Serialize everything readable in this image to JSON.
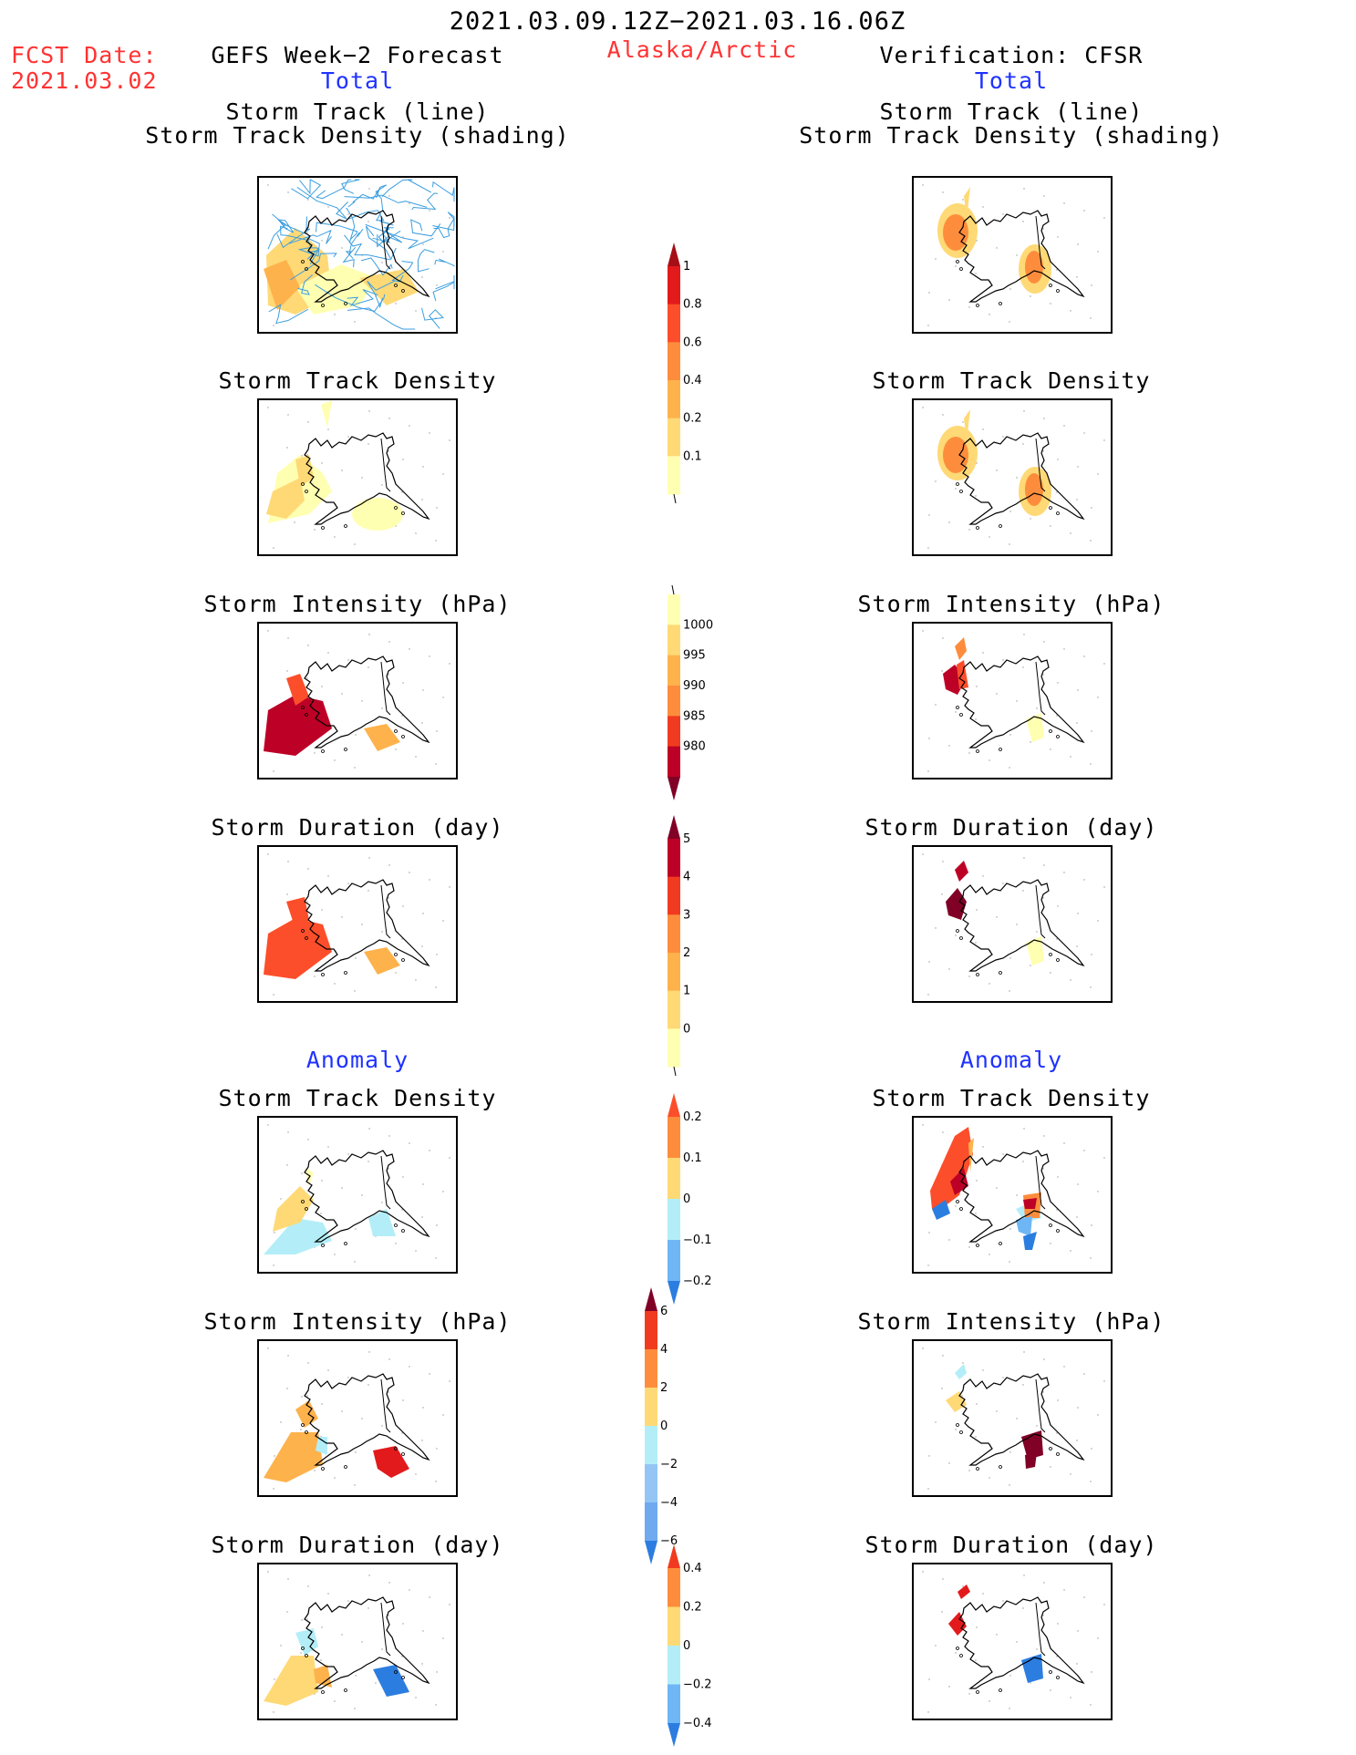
{
  "header": {
    "period": "2021.03.09.12Z−2021.03.16.06Z",
    "fcst_label": "FCST Date:",
    "fcst_date": "2021.03.02",
    "left_title": "GEFS Week−2 Forecast",
    "region": "Alaska/Arctic",
    "right_title": "Verification: CFSR",
    "total_label": "Total",
    "anomaly_label": "Anomaly"
  },
  "panels": {
    "track_line": "Storm Track (line)",
    "track_density_shading": "Storm Track Density (shading)",
    "track_density": "Storm Track Density",
    "intensity": "Storm Intensity (hPa)",
    "duration": "Storm Duration (day)"
  },
  "colorbars": {
    "density": {
      "ticks": [
        "1",
        "0.8",
        "0.6",
        "0.4",
        "0.2",
        "0.1"
      ],
      "colors": [
        "#a50f15",
        "#e31a1c",
        "#fc4e2a",
        "#fd8d3c",
        "#feb24c",
        "#fed976",
        "#ffffb2"
      ]
    },
    "intensity": {
      "ticks": [
        "1000",
        "995",
        "990",
        "985",
        "980"
      ],
      "colors": [
        "#ffffb2",
        "#fed976",
        "#feb24c",
        "#fd8d3c",
        "#f03b20",
        "#bd0026",
        "#800026"
      ]
    },
    "duration": {
      "ticks": [
        "5",
        "4",
        "3",
        "2",
        "1",
        "0"
      ],
      "colors": [
        "#800026",
        "#bd0026",
        "#f03b20",
        "#fd8d3c",
        "#feb24c",
        "#fed976",
        "#ffffb2"
      ]
    },
    "anom_density": {
      "ticks": [
        "0.2",
        "0.1",
        "0",
        "−0.1",
        "−0.2"
      ],
      "colors": [
        "#fc4e2a",
        "#fd8d3c",
        "#fed976",
        "#b3eef8",
        "#6fb6f5",
        "#2c7de0"
      ]
    },
    "anom_intensity": {
      "ticks": [
        "6",
        "4",
        "2",
        "0",
        "−2",
        "−4",
        "−6"
      ],
      "colors": [
        "#800026",
        "#f03b20",
        "#fd8d3c",
        "#fed976",
        "#b3eef8",
        "#94c6f5",
        "#6fa9f0",
        "#2c7de0"
      ]
    },
    "anom_duration": {
      "ticks": [
        "0.4",
        "0.2",
        "0",
        "−0.2",
        "−0.4"
      ],
      "colors": [
        "#f03b20",
        "#fd8d3c",
        "#fed976",
        "#b3eef8",
        "#6fb6f5",
        "#2c7de0"
      ]
    }
  },
  "colors": {
    "title_red": "#ff3333",
    "label_blue": "#1f33ff",
    "track_line": "#3b9ee0"
  }
}
